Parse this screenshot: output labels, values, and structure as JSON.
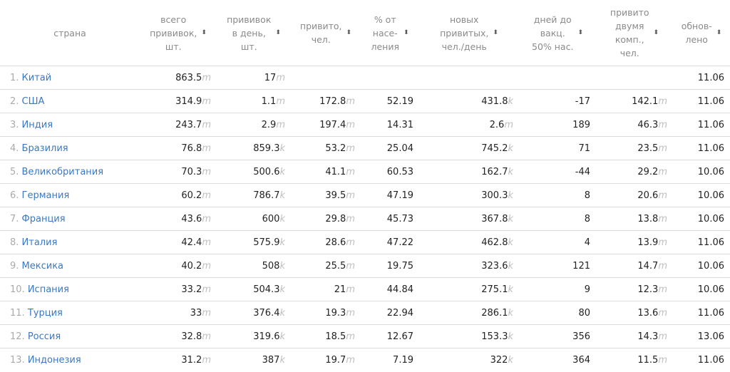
{
  "headers": [
    {
      "label": "страна",
      "sortable": false
    },
    {
      "label": "всего\nпрививок,\nшт.",
      "sortable": true
    },
    {
      "label": "прививок\nв день,\nшт.",
      "sortable": true
    },
    {
      "label": "привито,\nчел.",
      "sortable": true
    },
    {
      "label": "% от\nнасе-\nления",
      "sortable": true
    },
    {
      "label": "новых\nпривитых,\nчел./день",
      "sortable": true
    },
    {
      "label": "дней до\nвакц.\n50% нас.",
      "sortable": true
    },
    {
      "label": "привито\nдвумя\nкомп.,\nчел.",
      "sortable": true
    },
    {
      "label": "обнов-\nлено",
      "sortable": true
    }
  ],
  "sort_glyph": "⬍",
  "rows": [
    {
      "rank": "1.",
      "country": "Китай",
      "total": {
        "v": "863.5",
        "u": "m"
      },
      "daily": {
        "v": "17",
        "u": "m"
      },
      "vaccinated": {
        "v": "",
        "u": ""
      },
      "pct": "",
      "new_daily": {
        "v": "",
        "u": ""
      },
      "days": "",
      "two_doses": {
        "v": "",
        "u": ""
      },
      "updated": "11.06"
    },
    {
      "rank": "2.",
      "country": "США",
      "total": {
        "v": "314.9",
        "u": "m"
      },
      "daily": {
        "v": "1.1",
        "u": "m"
      },
      "vaccinated": {
        "v": "172.8",
        "u": "m"
      },
      "pct": "52.19",
      "new_daily": {
        "v": "431.8",
        "u": "k"
      },
      "days": "-17",
      "two_doses": {
        "v": "142.1",
        "u": "m"
      },
      "updated": "11.06"
    },
    {
      "rank": "3.",
      "country": "Индия",
      "total": {
        "v": "243.7",
        "u": "m"
      },
      "daily": {
        "v": "2.9",
        "u": "m"
      },
      "vaccinated": {
        "v": "197.4",
        "u": "m"
      },
      "pct": "14.31",
      "new_daily": {
        "v": "2.6",
        "u": "m"
      },
      "days": "189",
      "two_doses": {
        "v": "46.3",
        "u": "m"
      },
      "updated": "11.06"
    },
    {
      "rank": "4.",
      "country": "Бразилия",
      "total": {
        "v": "76.8",
        "u": "m"
      },
      "daily": {
        "v": "859.3",
        "u": "k"
      },
      "vaccinated": {
        "v": "53.2",
        "u": "m"
      },
      "pct": "25.04",
      "new_daily": {
        "v": "745.2",
        "u": "k"
      },
      "days": "71",
      "two_doses": {
        "v": "23.5",
        "u": "m"
      },
      "updated": "11.06"
    },
    {
      "rank": "5.",
      "country": "Великобритания",
      "total": {
        "v": "70.3",
        "u": "m"
      },
      "daily": {
        "v": "500.6",
        "u": "k"
      },
      "vaccinated": {
        "v": "41.1",
        "u": "m"
      },
      "pct": "60.53",
      "new_daily": {
        "v": "162.7",
        "u": "k"
      },
      "days": "-44",
      "two_doses": {
        "v": "29.2",
        "u": "m"
      },
      "updated": "10.06"
    },
    {
      "rank": "6.",
      "country": "Германия",
      "total": {
        "v": "60.2",
        "u": "m"
      },
      "daily": {
        "v": "786.7",
        "u": "k"
      },
      "vaccinated": {
        "v": "39.5",
        "u": "m"
      },
      "pct": "47.19",
      "new_daily": {
        "v": "300.3",
        "u": "k"
      },
      "days": "8",
      "two_doses": {
        "v": "20.6",
        "u": "m"
      },
      "updated": "10.06"
    },
    {
      "rank": "7.",
      "country": "Франция",
      "total": {
        "v": "43.6",
        "u": "m"
      },
      "daily": {
        "v": "600",
        "u": "k"
      },
      "vaccinated": {
        "v": "29.8",
        "u": "m"
      },
      "pct": "45.73",
      "new_daily": {
        "v": "367.8",
        "u": "k"
      },
      "days": "8",
      "two_doses": {
        "v": "13.8",
        "u": "m"
      },
      "updated": "10.06"
    },
    {
      "rank": "8.",
      "country": "Италия",
      "total": {
        "v": "42.4",
        "u": "m"
      },
      "daily": {
        "v": "575.9",
        "u": "k"
      },
      "vaccinated": {
        "v": "28.6",
        "u": "m"
      },
      "pct": "47.22",
      "new_daily": {
        "v": "462.8",
        "u": "k"
      },
      "days": "4",
      "two_doses": {
        "v": "13.9",
        "u": "m"
      },
      "updated": "11.06"
    },
    {
      "rank": "9.",
      "country": "Мексика",
      "total": {
        "v": "40.2",
        "u": "m"
      },
      "daily": {
        "v": "508",
        "u": "k"
      },
      "vaccinated": {
        "v": "25.5",
        "u": "m"
      },
      "pct": "19.75",
      "new_daily": {
        "v": "323.6",
        "u": "k"
      },
      "days": "121",
      "two_doses": {
        "v": "14.7",
        "u": "m"
      },
      "updated": "10.06"
    },
    {
      "rank": "10.",
      "country": "Испания",
      "total": {
        "v": "33.2",
        "u": "m"
      },
      "daily": {
        "v": "504.3",
        "u": "k"
      },
      "vaccinated": {
        "v": "21",
        "u": "m"
      },
      "pct": "44.84",
      "new_daily": {
        "v": "275.1",
        "u": "k"
      },
      "days": "9",
      "two_doses": {
        "v": "12.3",
        "u": "m"
      },
      "updated": "10.06"
    },
    {
      "rank": "11.",
      "country": "Турция",
      "total": {
        "v": "33",
        "u": "m"
      },
      "daily": {
        "v": "376.4",
        "u": "k"
      },
      "vaccinated": {
        "v": "19.3",
        "u": "m"
      },
      "pct": "22.94",
      "new_daily": {
        "v": "286.1",
        "u": "k"
      },
      "days": "80",
      "two_doses": {
        "v": "13.6",
        "u": "m"
      },
      "updated": "11.06"
    },
    {
      "rank": "12.",
      "country": "Россия",
      "total": {
        "v": "32.8",
        "u": "m"
      },
      "daily": {
        "v": "319.6",
        "u": "k"
      },
      "vaccinated": {
        "v": "18.5",
        "u": "m"
      },
      "pct": "12.67",
      "new_daily": {
        "v": "153.3",
        "u": "k"
      },
      "days": "356",
      "two_doses": {
        "v": "14.3",
        "u": "m"
      },
      "updated": "13.06"
    },
    {
      "rank": "13.",
      "country": "Индонезия",
      "total": {
        "v": "31.2",
        "u": "m"
      },
      "daily": {
        "v": "387",
        "u": "k"
      },
      "vaccinated": {
        "v": "19.7",
        "u": "m"
      },
      "pct": "7.19",
      "new_daily": {
        "v": "322",
        "u": "k"
      },
      "days": "364",
      "two_doses": {
        "v": "11.5",
        "u": "m"
      },
      "updated": "11.06"
    }
  ]
}
